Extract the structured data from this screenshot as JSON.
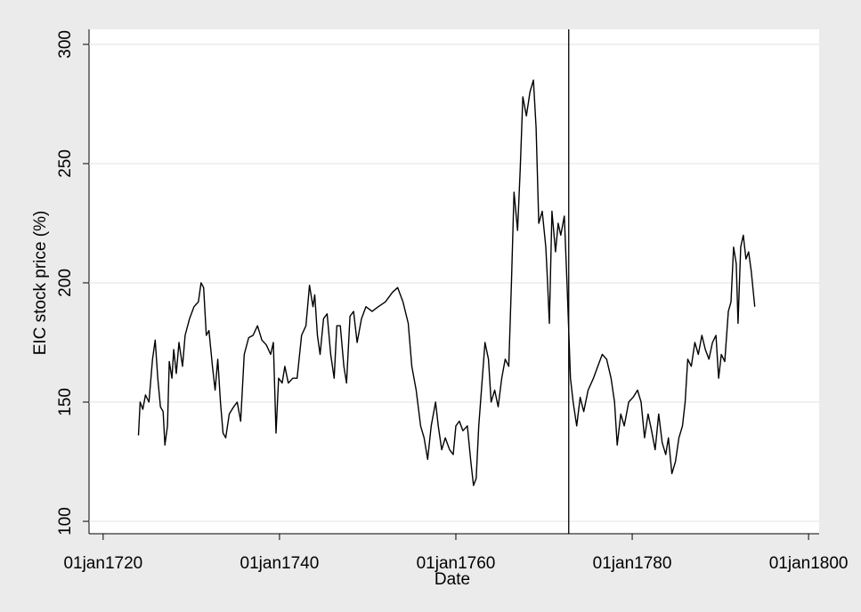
{
  "chart_data": {
    "type": "line",
    "y_label": "EIC stock price (%)",
    "x_label": "Date",
    "xlim": [
      1718.4,
      1801.2
    ],
    "ylim": [
      94.8,
      306.3
    ],
    "xticks": [
      {
        "value": 1720,
        "label": "01jan1720"
      },
      {
        "value": 1740,
        "label": "01jan1740"
      },
      {
        "value": 1760,
        "label": "01jan1760"
      },
      {
        "value": 1780,
        "label": "01jan1780"
      },
      {
        "value": 1800,
        "label": "01jan1800"
      }
    ],
    "yticks": [
      100,
      150,
      200,
      250,
      300
    ],
    "grid": true,
    "xline": 1772.8,
    "color": "#000000",
    "x": [
      1724.0,
      1724.2,
      1724.5,
      1724.8,
      1725.2,
      1725.6,
      1725.9,
      1726.2,
      1726.5,
      1726.8,
      1727.0,
      1727.3,
      1727.5,
      1727.8,
      1728.0,
      1728.3,
      1728.6,
      1729.0,
      1729.3,
      1729.8,
      1730.3,
      1730.8,
      1731.1,
      1731.4,
      1731.7,
      1732.0,
      1732.4,
      1732.7,
      1733.0,
      1733.3,
      1733.6,
      1733.9,
      1734.3,
      1734.8,
      1735.2,
      1735.6,
      1736.0,
      1736.5,
      1737.0,
      1737.5,
      1738.0,
      1738.5,
      1739.0,
      1739.3,
      1739.6,
      1739.9,
      1740.3,
      1740.6,
      1741.0,
      1741.5,
      1742.0,
      1742.5,
      1743.0,
      1743.4,
      1743.8,
      1744.0,
      1744.3,
      1744.6,
      1745.0,
      1745.4,
      1745.8,
      1746.2,
      1746.5,
      1746.9,
      1747.3,
      1747.6,
      1748.0,
      1748.4,
      1748.8,
      1749.3,
      1749.8,
      1750.5,
      1751.2,
      1752.0,
      1752.8,
      1753.4,
      1754.0,
      1754.6,
      1755.0,
      1755.5,
      1756.0,
      1756.4,
      1756.8,
      1757.2,
      1757.7,
      1758.0,
      1758.4,
      1758.8,
      1759.3,
      1759.7,
      1760.0,
      1760.4,
      1760.8,
      1761.3,
      1761.7,
      1762.0,
      1762.3,
      1762.6,
      1763.0,
      1763.3,
      1763.7,
      1764.0,
      1764.4,
      1764.8,
      1765.2,
      1765.6,
      1766.0,
      1766.3,
      1766.6,
      1767.0,
      1767.3,
      1767.6,
      1768.0,
      1768.4,
      1768.8,
      1769.1,
      1769.4,
      1769.8,
      1770.2,
      1770.4,
      1770.6,
      1770.9,
      1771.3,
      1771.6,
      1771.9,
      1772.3,
      1772.6,
      1773.0,
      1773.3,
      1773.7,
      1774.1,
      1774.5,
      1775.0,
      1775.6,
      1776.1,
      1776.6,
      1777.1,
      1777.6,
      1778.0,
      1778.3,
      1778.7,
      1779.1,
      1779.6,
      1780.1,
      1780.6,
      1781.0,
      1781.4,
      1781.8,
      1782.2,
      1782.6,
      1783.0,
      1783.4,
      1783.8,
      1784.1,
      1784.5,
      1784.9,
      1785.3,
      1785.7,
      1786.0,
      1786.3,
      1786.7,
      1787.1,
      1787.5,
      1787.9,
      1788.3,
      1788.7,
      1789.1,
      1789.5,
      1789.8,
      1790.1,
      1790.5,
      1790.9,
      1791.2,
      1791.5,
      1791.8,
      1792.0,
      1792.3,
      1792.6,
      1792.9,
      1793.2,
      1793.5,
      1793.9
    ],
    "values": [
      136,
      150,
      147,
      153,
      150,
      168,
      176,
      160,
      148,
      146,
      132,
      140,
      167,
      160,
      172,
      162,
      175,
      165,
      178,
      185,
      190,
      192,
      200,
      198,
      178,
      180,
      165,
      155,
      168,
      150,
      137,
      135,
      145,
      148,
      150,
      142,
      170,
      177,
      178,
      182,
      176,
      174,
      170,
      175,
      137,
      160,
      158,
      165,
      158,
      160,
      160,
      178,
      182,
      199,
      190,
      195,
      178,
      170,
      185,
      187,
      170,
      160,
      182,
      182,
      165,
      158,
      186,
      188,
      175,
      185,
      190,
      188,
      190,
      192,
      196,
      198,
      192,
      183,
      165,
      155,
      140,
      135,
      126,
      140,
      150,
      140,
      130,
      135,
      130,
      128,
      140,
      142,
      138,
      140,
      125,
      115,
      118,
      140,
      160,
      175,
      168,
      150,
      155,
      148,
      160,
      168,
      165,
      200,
      238,
      222,
      248,
      278,
      270,
      280,
      285,
      265,
      225,
      230,
      215,
      200,
      183,
      230,
      213,
      225,
      220,
      228,
      200,
      160,
      150,
      140,
      152,
      146,
      155,
      160,
      165,
      170,
      168,
      160,
      150,
      132,
      145,
      140,
      150,
      152,
      155,
      150,
      135,
      145,
      138,
      130,
      145,
      133,
      128,
      135,
      120,
      125,
      135,
      140,
      150,
      168,
      165,
      175,
      170,
      178,
      172,
      168,
      175,
      178,
      160,
      170,
      167,
      188,
      192,
      215,
      208,
      183,
      215,
      220,
      210,
      213,
      205,
      190
    ]
  }
}
